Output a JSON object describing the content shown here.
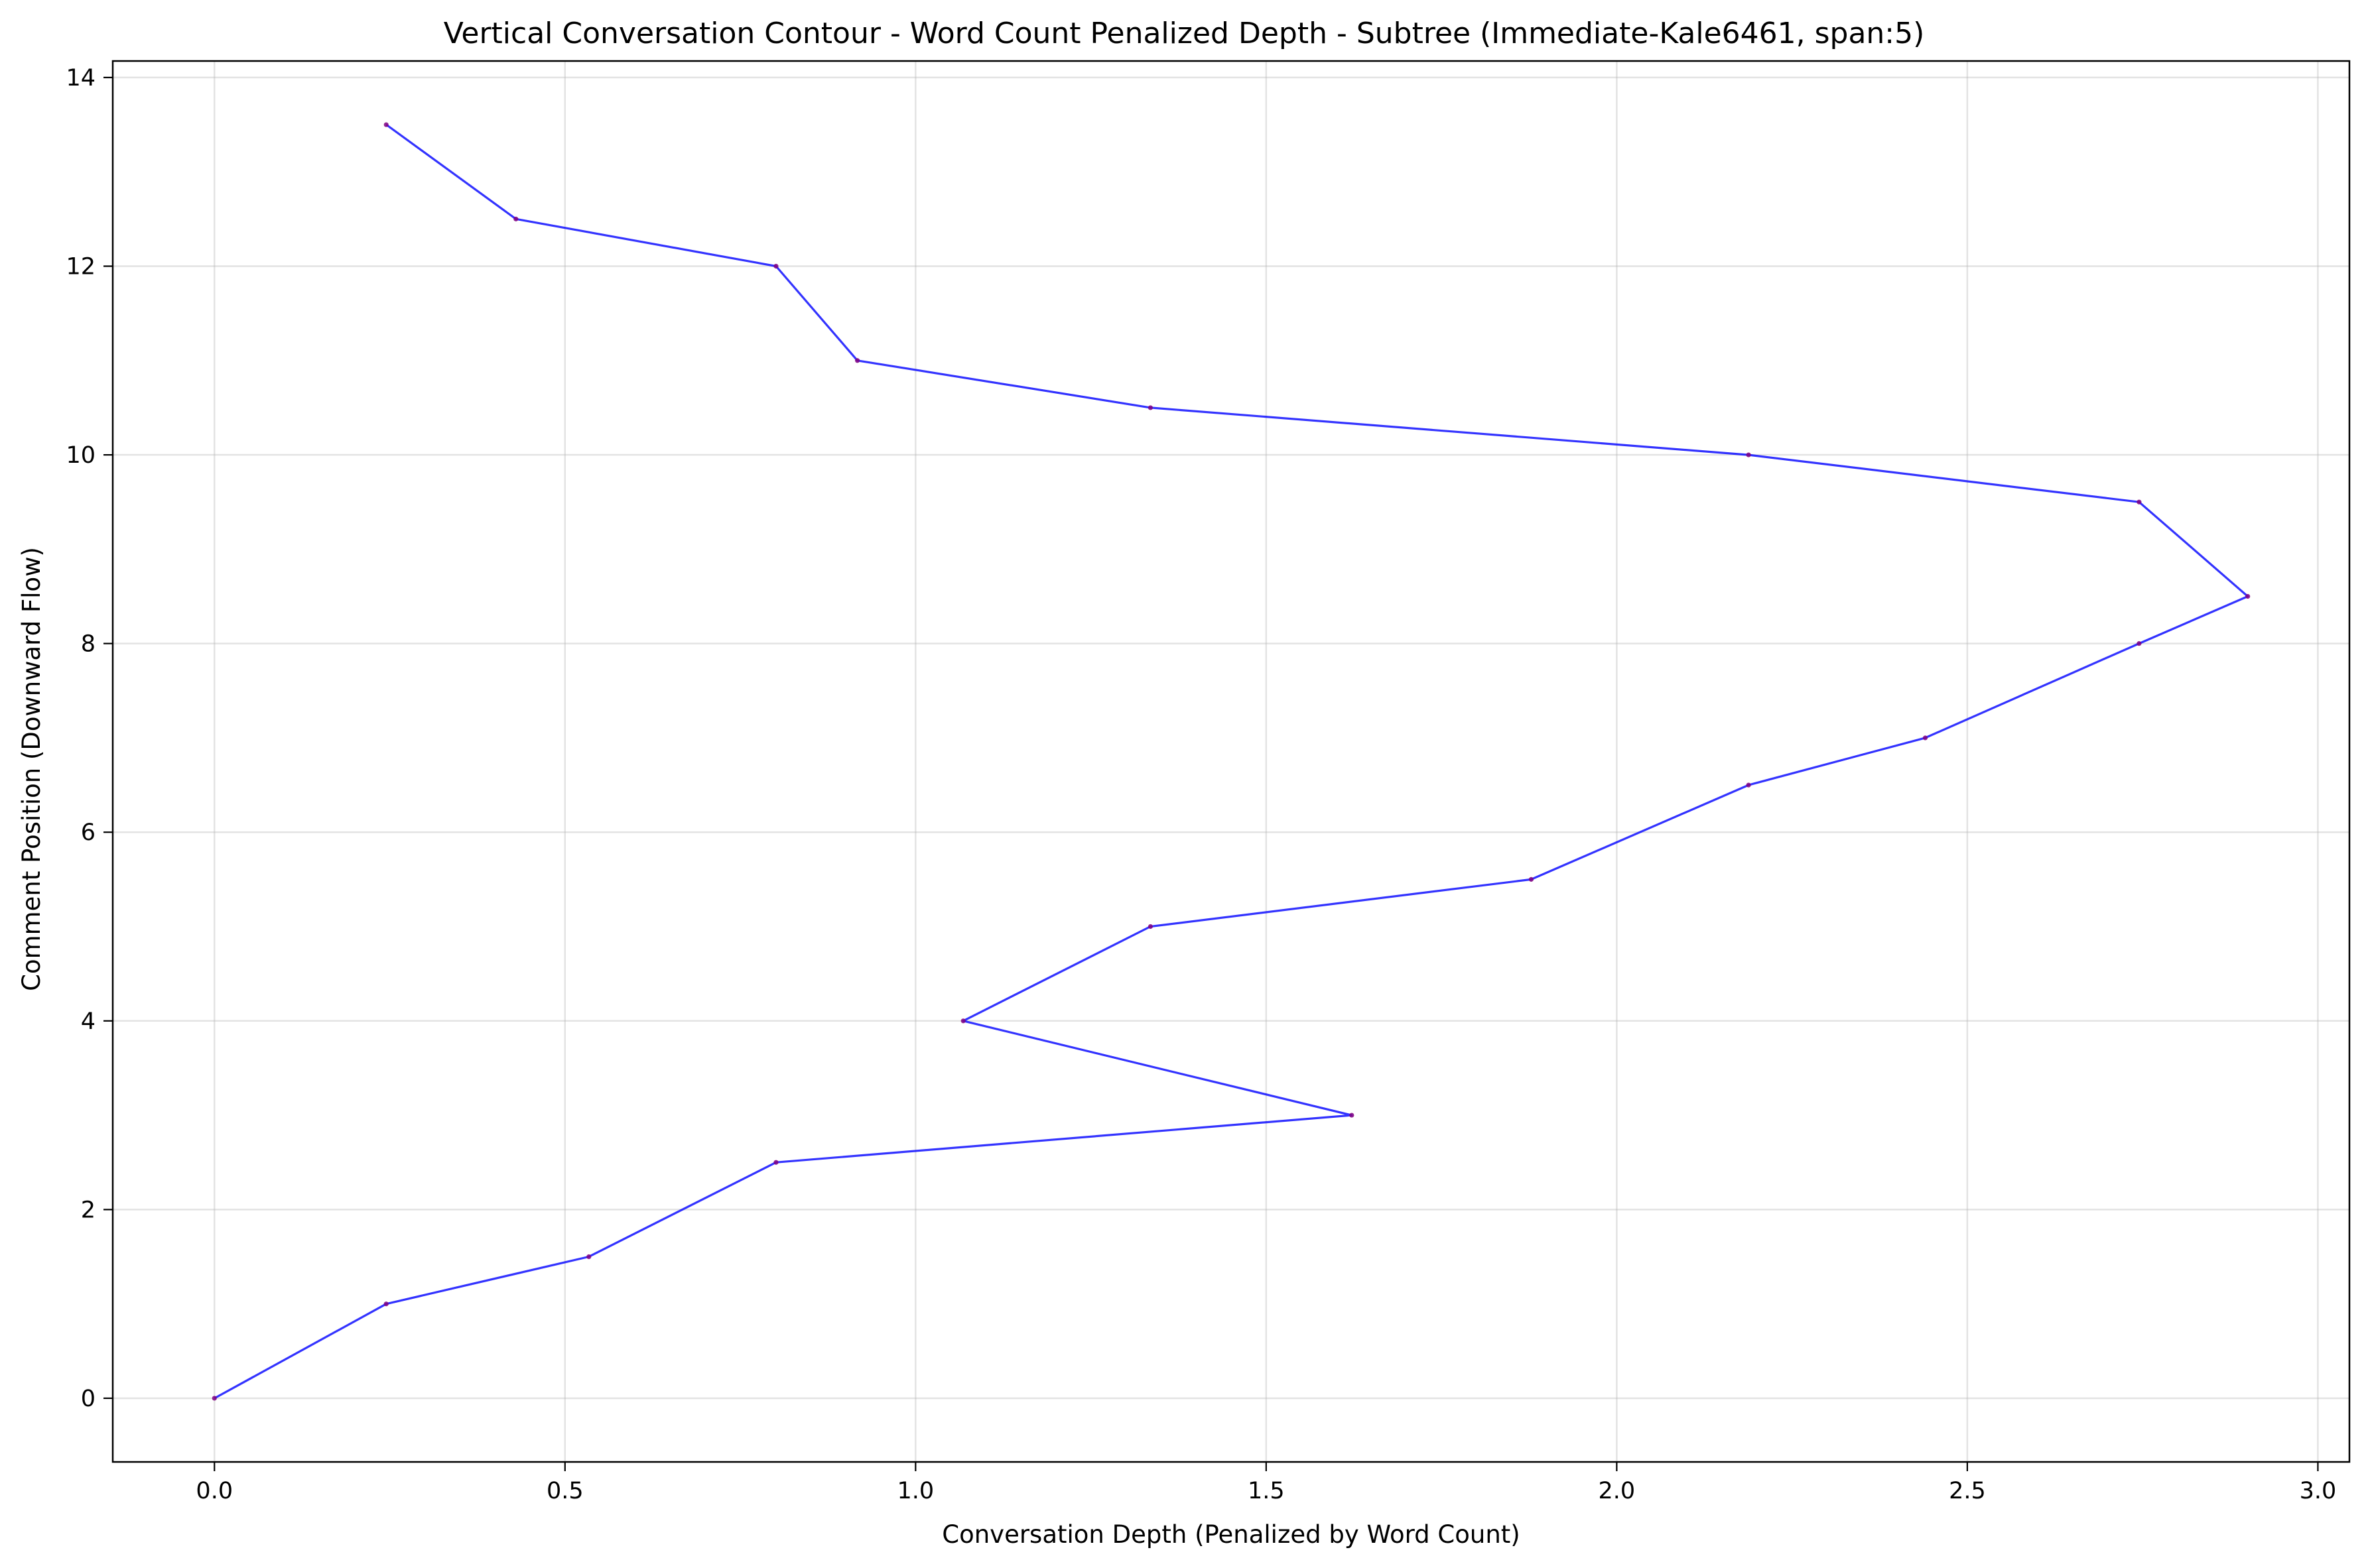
{
  "chart_data": {
    "type": "line",
    "title": "Vertical Conversation Contour - Word Count Penalized Depth - Subtree (Immediate-Kale6461, span:5)",
    "xlabel": "Conversation Depth (Penalized by Word Count)",
    "ylabel": "Comment Position (Downward Flow)",
    "xlim": [
      -0.145,
      3.045
    ],
    "ylim": [
      -0.675,
      14.175
    ],
    "xticks": [
      0.0,
      0.5,
      1.0,
      1.5,
      2.0,
      2.5,
      3.0
    ],
    "xtick_labels": [
      "0.0",
      "0.5",
      "1.0",
      "1.5",
      "2.0",
      "2.5",
      "3.0"
    ],
    "yticks": [
      0,
      2,
      4,
      6,
      8,
      10,
      12,
      14
    ],
    "ytick_labels": [
      "0",
      "2",
      "4",
      "6",
      "8",
      "10",
      "12",
      "14"
    ],
    "grid": true,
    "series": [
      {
        "color": "#0000ff",
        "marker_color": "#800080",
        "points": [
          [
            0.0,
            0.0
          ],
          [
            0.245,
            1.0
          ],
          [
            0.534,
            1.5
          ],
          [
            0.801,
            2.5
          ],
          [
            1.622,
            3.0
          ],
          [
            1.068,
            4.0
          ],
          [
            1.335,
            5.0
          ],
          [
            1.878,
            5.5
          ],
          [
            2.188,
            6.5
          ],
          [
            2.44,
            7.0
          ],
          [
            2.745,
            8.0
          ],
          [
            2.9,
            8.5
          ],
          [
            2.745,
            9.5
          ],
          [
            2.188,
            10.0
          ],
          [
            1.335,
            10.5
          ],
          [
            0.917,
            11.0
          ],
          [
            0.801,
            12.0
          ],
          [
            0.43,
            12.5
          ],
          [
            0.245,
            13.5
          ]
        ]
      }
    ]
  }
}
